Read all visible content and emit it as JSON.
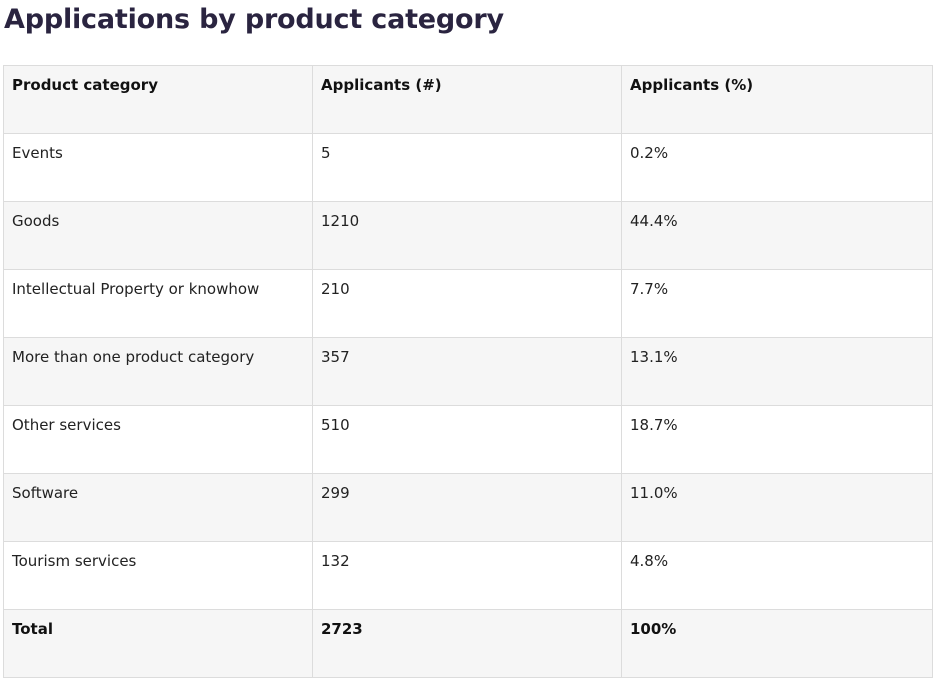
{
  "page": {
    "title": "Applications by product category"
  },
  "table": {
    "headers": [
      "Product category",
      "Applicants (#)",
      "Applicants (%)"
    ],
    "rows": [
      {
        "category": "Events",
        "applicants": "5",
        "percent": "0.2%"
      },
      {
        "category": "Goods",
        "applicants": "1210",
        "percent": "44.4%"
      },
      {
        "category": "Intellectual Property or knowhow",
        "applicants": "210",
        "percent": "7.7%"
      },
      {
        "category": "More than one product category",
        "applicants": "357",
        "percent": "13.1%"
      },
      {
        "category": "Other services",
        "applicants": "510",
        "percent": "18.7%"
      },
      {
        "category": "Software",
        "applicants": "299",
        "percent": "11.0%"
      },
      {
        "category": "Tourism services",
        "applicants": "132",
        "percent": "4.8%"
      }
    ],
    "total": {
      "category": "Total",
      "applicants": "2723",
      "percent": "100%"
    }
  }
}
